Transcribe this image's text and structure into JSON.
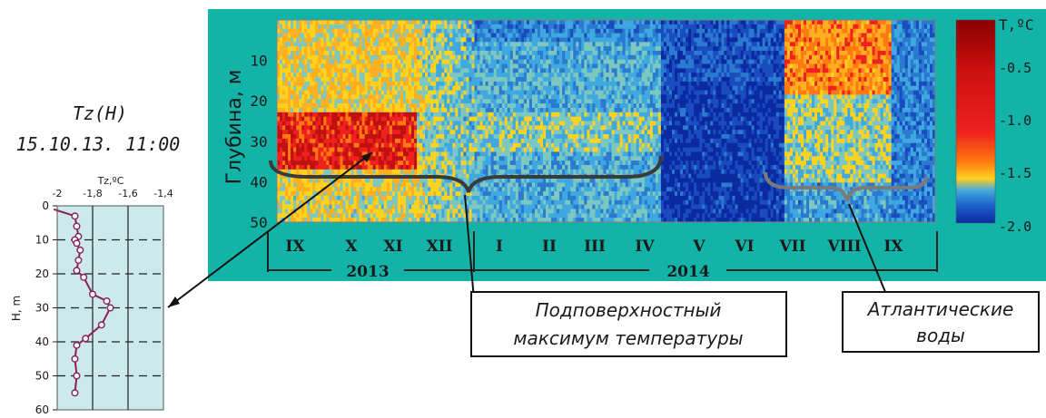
{
  "profile": {
    "title": "Tz(H)",
    "datetime": "15.10.13. 11:00",
    "chart_data": {
      "type": "line",
      "xlabel": "Tz,ºC",
      "ylabel": "H, m",
      "xlim": [
        -2,
        -1.4
      ],
      "ylim": [
        0,
        60
      ],
      "x_ticks": [
        "-2",
        "-1,8",
        "-1,6",
        "-1,4"
      ],
      "y_ticks": [
        "0",
        "10",
        "20",
        "30",
        "40",
        "50",
        "60"
      ],
      "grid": true,
      "series": [
        {
          "x": [
            -2.02,
            -1.9,
            -1.89,
            -1.88,
            -1.9,
            -1.89,
            -1.87,
            -1.88,
            -1.89,
            -1.85,
            -1.8,
            -1.72,
            -1.7,
            -1.75,
            -1.84,
            -1.89,
            -1.9,
            -1.89,
            -1.9
          ],
          "y": [
            1,
            3,
            6,
            9,
            10,
            11,
            13,
            16,
            19,
            21,
            26,
            28,
            30,
            35,
            39,
            41,
            45,
            50,
            55
          ]
        }
      ]
    }
  },
  "heatmap": {
    "ylabel": "Глубина, м",
    "y_ticks": [
      "10",
      "20",
      "30",
      "40",
      "50"
    ],
    "months": [
      "IX",
      "X",
      "XI",
      "XII",
      "I",
      "II",
      "III",
      "IV",
      "V",
      "VI",
      "VII",
      "VIII",
      "IX"
    ],
    "years": [
      "2013",
      "2014"
    ],
    "colorbar": {
      "unit": "T,ºC",
      "ticks": [
        "-0.5",
        "-1.0",
        "-1.5",
        "-2.0"
      ],
      "colors": [
        "#800000",
        "#ee1c1c",
        "#ff8000",
        "#ffd21e",
        "#2090d0",
        "#0b2aa0"
      ]
    },
    "chart_data": {
      "type": "heatmap",
      "xlabel": "",
      "ylabel": "Глубина, м",
      "x": [
        "IX",
        "X",
        "XI",
        "XII",
        "I",
        "II",
        "III",
        "IV",
        "V",
        "VI",
        "VII",
        "VIII",
        "IX"
      ],
      "ylim": [
        50,
        0
      ],
      "zlim": [
        -2.0,
        -0.3
      ]
    }
  },
  "annotations": {
    "subsurface": [
      "Подповерхностный",
      "максимум температуры"
    ],
    "atlantic": [
      "Атлантические",
      "воды"
    ]
  }
}
